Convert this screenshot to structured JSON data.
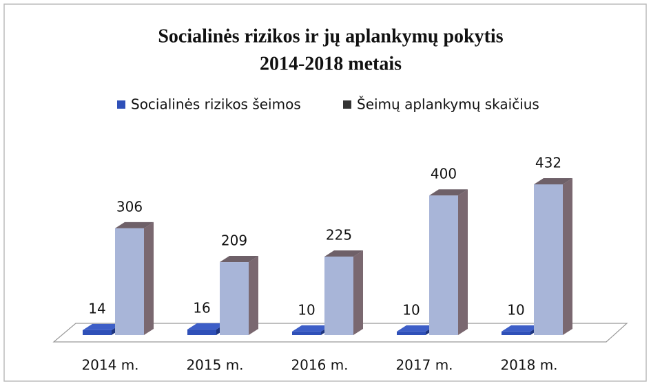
{
  "chart_data": {
    "type": "bar3d",
    "title": [
      "Socialinės rizikos ir jų aplankymų pokytis",
      "2014-2018 metais"
    ],
    "categories": [
      "2014 m.",
      "2015 m.",
      "2016 m.",
      "2017 m.",
      "2018 m."
    ],
    "series": [
      {
        "name": "Socialinės rizikos šeimos",
        "color": "#2f50b8",
        "values": [
          14,
          16,
          10,
          10,
          10
        ]
      },
      {
        "name": "Šeimų aplankymų skaičius",
        "color": "#a8b5d8",
        "values": [
          306,
          209,
          225,
          400,
          432
        ]
      }
    ],
    "legend": "top"
  }
}
